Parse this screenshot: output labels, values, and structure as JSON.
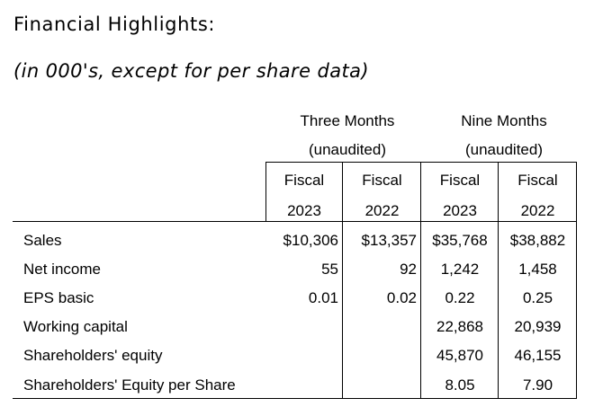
{
  "title": "Financial Highlights:",
  "subtitle": "(in 000's, except for per share data)",
  "table": {
    "group_headers": [
      {
        "label": "Three Months",
        "note": "(unaudited)"
      },
      {
        "label": "Nine Months",
        "note": "(unaudited)"
      }
    ],
    "columns": [
      {
        "top": "Fiscal",
        "bottom": "2023"
      },
      {
        "top": "Fiscal",
        "bottom": "2022"
      },
      {
        "top": "Fiscal",
        "bottom": "2023"
      },
      {
        "top": "Fiscal",
        "bottom": "2022"
      }
    ],
    "rows": [
      {
        "label": "Sales",
        "values": [
          "$10,306",
          "$13,357",
          "$35,768",
          "$38,882"
        ]
      },
      {
        "label": "Net income",
        "values": [
          "55",
          "92",
          "1,242",
          "1,458"
        ]
      },
      {
        "label": "EPS basic",
        "values": [
          "0.01",
          "0.02",
          "0.22",
          "0.25"
        ]
      },
      {
        "label": "Working capital",
        "values": [
          "",
          "",
          "22,868",
          "20,939"
        ]
      },
      {
        "label": "Shareholders' equity",
        "values": [
          "",
          "",
          "45,870",
          "46,155"
        ]
      },
      {
        "label": "Shareholders' Equity per Share",
        "values": [
          "",
          "",
          "8.05",
          "7.90"
        ]
      }
    ]
  }
}
